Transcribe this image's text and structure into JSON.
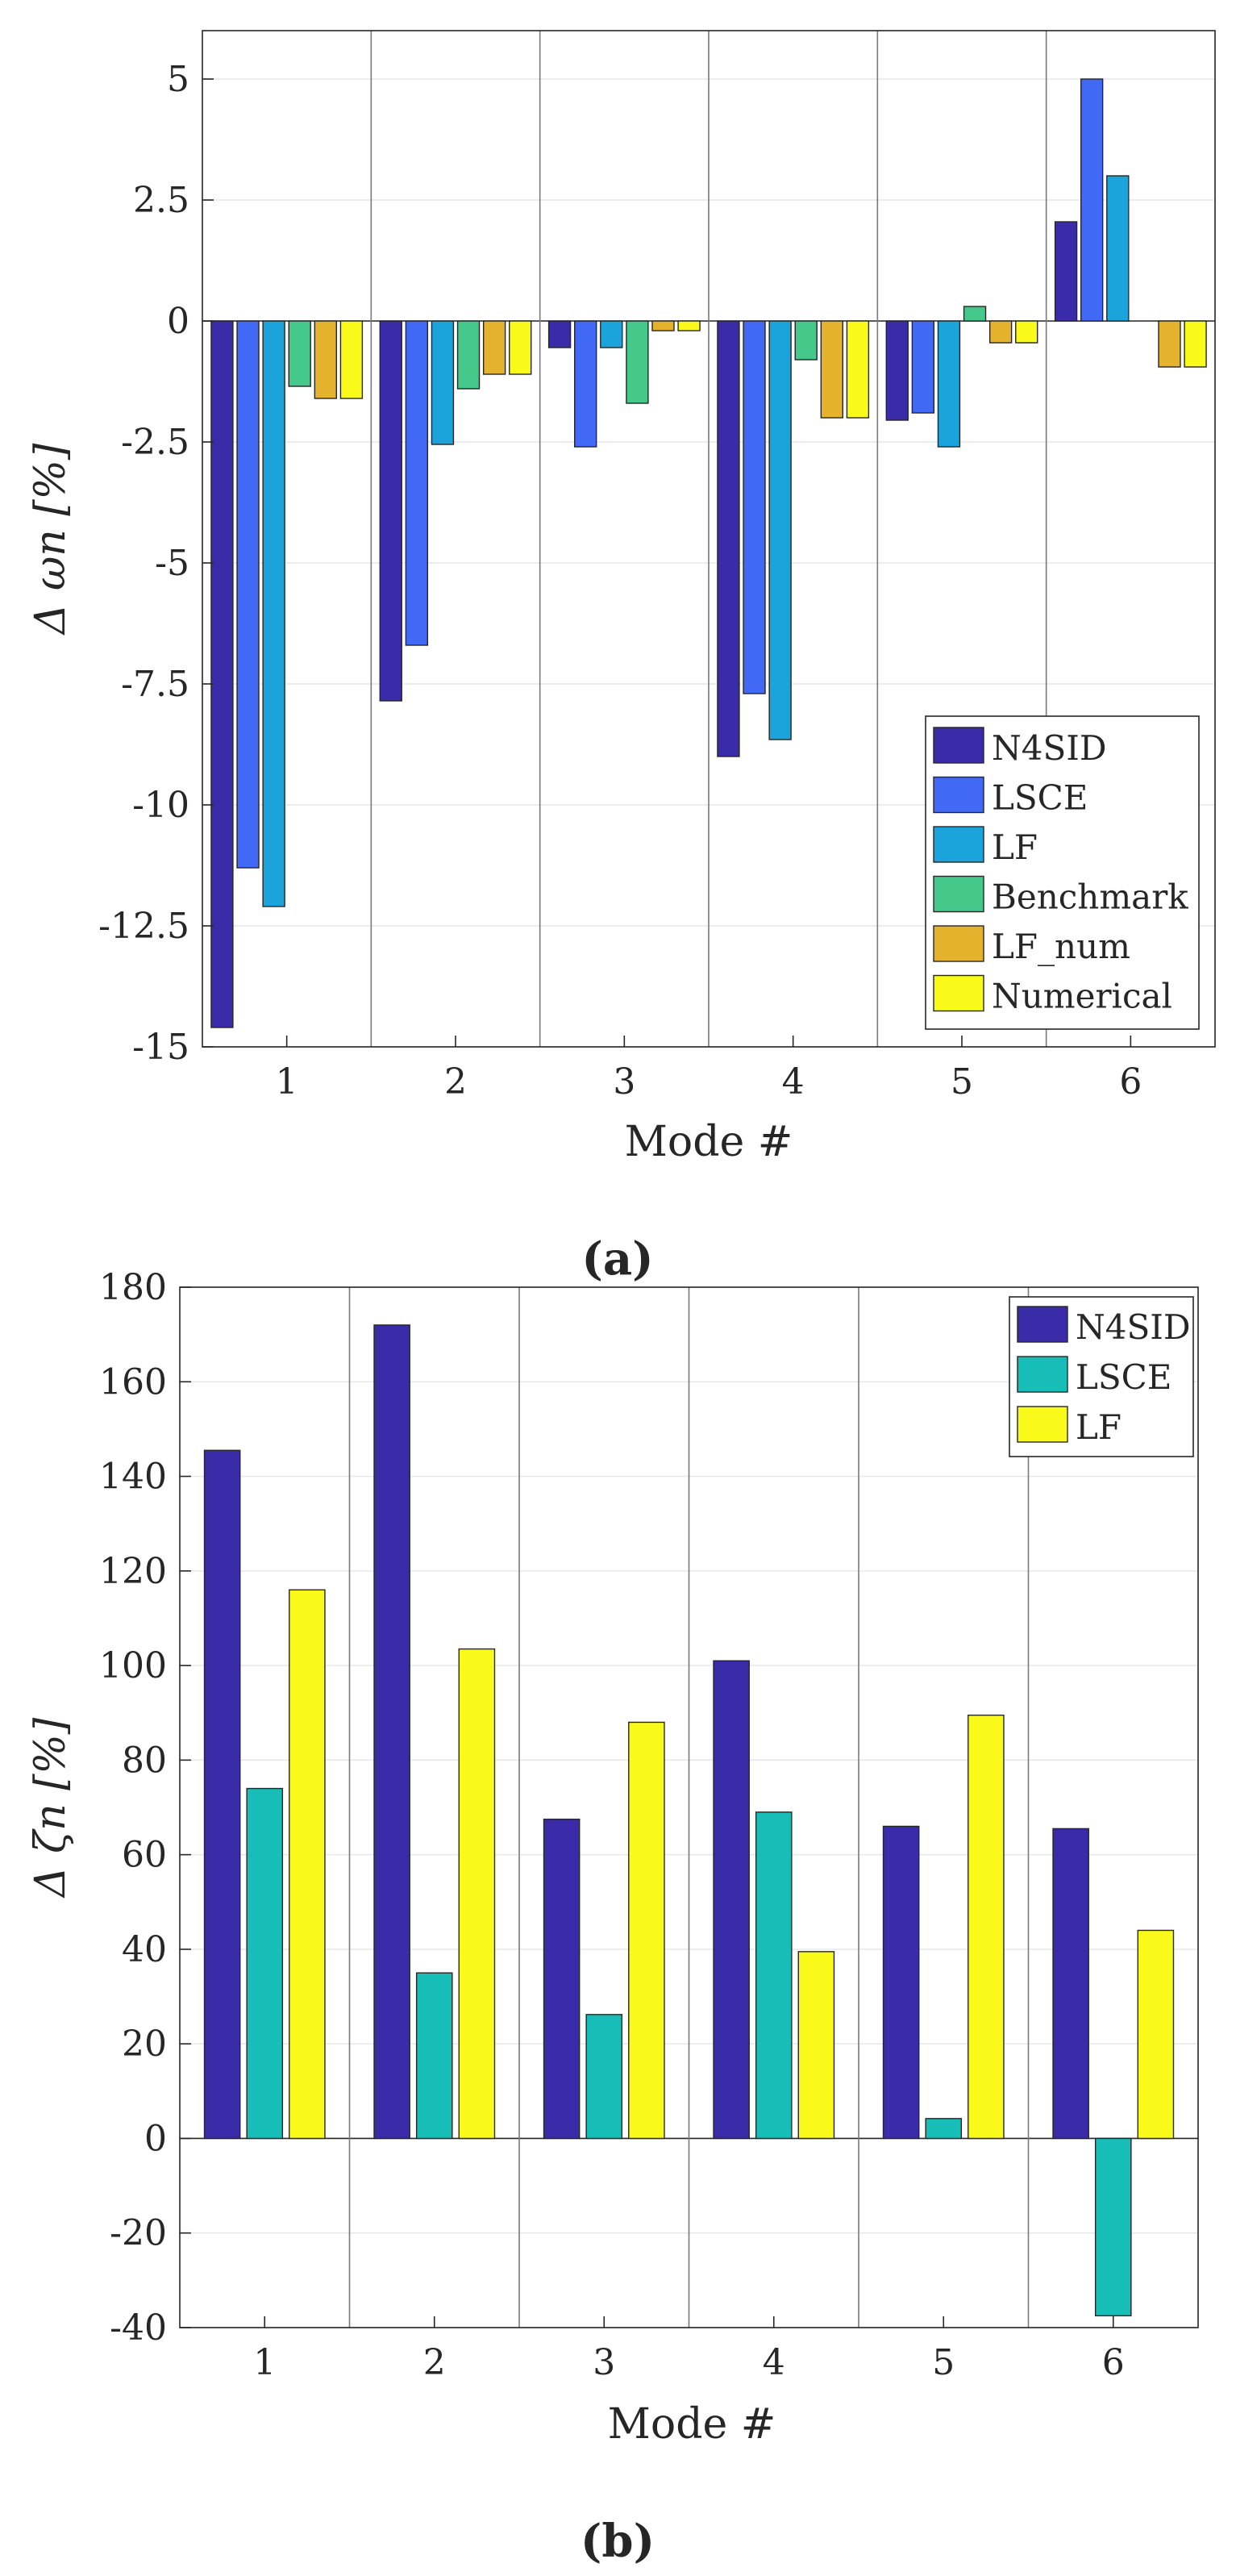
{
  "chart_data": [
    {
      "panel": "(a)",
      "type": "bar",
      "categories": [
        "1",
        "2",
        "3",
        "4",
        "5",
        "6"
      ],
      "xlabel": "Mode #",
      "ylabel": "Δ ωn [%]",
      "ylim": [
        -15,
        6
      ],
      "yticks": [
        5,
        2.5,
        0,
        -2.5,
        -5,
        -7.5,
        -10,
        -12.5,
        -15
      ],
      "ytick_labels": [
        "5",
        "2.5",
        "0",
        "-2.5",
        "-5",
        "-7.5",
        "-10",
        "-12.5",
        "-15"
      ],
      "grid": "horizontal",
      "legend_position": "bottom-right",
      "series": [
        {
          "name": "N4SID",
          "color": "#3a2ba8",
          "values": [
            -14.6,
            -7.85,
            -0.55,
            -9.0,
            -2.05,
            2.05
          ]
        },
        {
          "name": "LSCE",
          "color": "#4169f6",
          "values": [
            -11.3,
            -6.7,
            -2.6,
            -7.7,
            -1.9,
            5.0
          ]
        },
        {
          "name": "LF",
          "color": "#1ba3dc",
          "values": [
            -12.1,
            -2.55,
            -0.55,
            -8.65,
            -2.6,
            3.0
          ]
        },
        {
          "name": "Benchmark",
          "color": "#44c98a",
          "values": [
            -1.35,
            -1.4,
            -1.7,
            -0.8,
            0.3,
            0.0
          ]
        },
        {
          "name": "LF_num",
          "color": "#e4b22c",
          "values": [
            -1.6,
            -1.1,
            -0.2,
            -2.0,
            -0.45,
            -0.95
          ]
        },
        {
          "name": "Numerical",
          "color": "#f9f91a",
          "values": [
            -1.6,
            -1.1,
            -0.2,
            -2.0,
            -0.45,
            -0.95
          ]
        }
      ]
    },
    {
      "panel": "(b)",
      "type": "bar",
      "categories": [
        "1",
        "2",
        "3",
        "4",
        "5",
        "6"
      ],
      "xlabel": "Mode #",
      "ylabel": "Δ ζn [%]",
      "ylim": [
        -40,
        180
      ],
      "yticks": [
        180,
        160,
        140,
        120,
        100,
        80,
        60,
        40,
        20,
        0,
        -20,
        -40
      ],
      "ytick_labels": [
        "180",
        "160",
        "140",
        "120",
        "100",
        "80",
        "60",
        "40",
        "20",
        "0",
        "-20",
        "-40"
      ],
      "grid": "horizontal",
      "legend_position": "top-right",
      "series": [
        {
          "name": "N4SID",
          "color": "#3a2ba8",
          "values": [
            145.5,
            172,
            67.5,
            101,
            66,
            65.5
          ]
        },
        {
          "name": "LSCE",
          "color": "#17beb8",
          "values": [
            74,
            35,
            26.2,
            69,
            4.2,
            -37.5
          ]
        },
        {
          "name": "LF",
          "color": "#f9f91a",
          "values": [
            116,
            103.5,
            88,
            39.5,
            89.5,
            44
          ]
        }
      ]
    }
  ]
}
